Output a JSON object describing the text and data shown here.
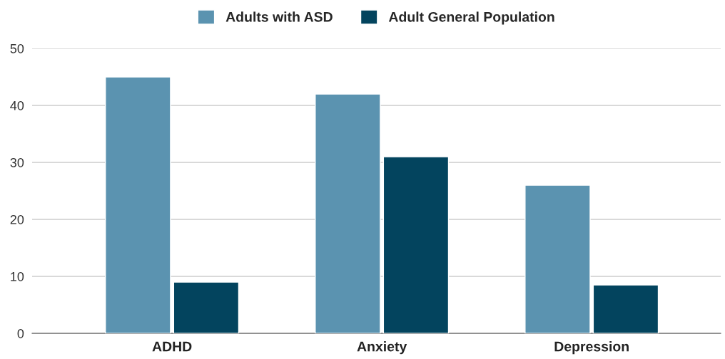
{
  "chart_data": {
    "type": "bar",
    "categories": [
      "ADHD",
      "Anxiety",
      "Depression"
    ],
    "series": [
      {
        "name": "Adults with ASD",
        "color": "#5b93b0",
        "values": [
          45,
          42,
          26
        ]
      },
      {
        "name": "Adult General Population",
        "color": "#03445e",
        "values": [
          9,
          31,
          8.5
        ]
      }
    ],
    "ylim": [
      0,
      50
    ],
    "yticks": [
      0,
      10,
      20,
      30,
      40,
      50
    ],
    "grid": "y",
    "legend": "top"
  }
}
